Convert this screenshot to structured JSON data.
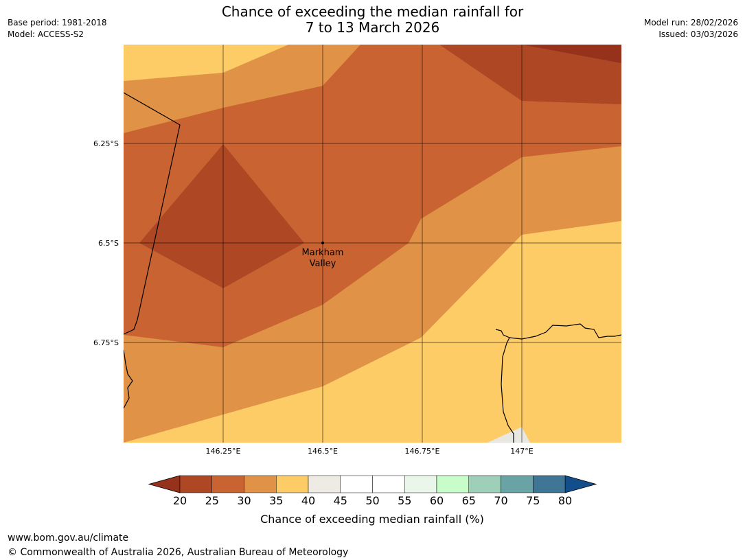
{
  "header": {
    "title_line1": "Chance of exceeding the median rainfall for",
    "title_line2": "7 to 13 March 2026",
    "base_period": "Base period: 1981-2018",
    "model": "Model: ACCESS-S2",
    "model_run": "Model run: 28/02/2026",
    "issued": "Issued: 03/03/2026"
  },
  "map": {
    "lat_labels": [
      "6.25°S",
      "6.5°S",
      "6.75°S"
    ],
    "lon_labels": [
      "146.25°E",
      "146.5°E",
      "146.75°E",
      "147°E"
    ],
    "place_name_line1": "Markham",
    "place_name_line2": "Valley",
    "band_colors": {
      "20-25": "#ae4724",
      "25-30": "#c96432",
      "30-35": "#e09246",
      "35-40": "#fdcc67",
      "below-20": "#96321c",
      "land-grey": "#e9e7e2"
    }
  },
  "colorbar": {
    "ticks": [
      "20",
      "25",
      "30",
      "35",
      "40",
      "45",
      "50",
      "55",
      "60",
      "65",
      "70",
      "75",
      "80"
    ],
    "label": "Chance of exceeding median rainfall (%)",
    "under_color": "#96321c",
    "over_color": "#134e8c",
    "colors": [
      "#ae4724",
      "#c96432",
      "#e09246",
      "#fdcc67",
      "#eeebe5",
      "#ffffff",
      "#ffffff",
      "#eaf6ea",
      "#c8fcc8",
      "#9ecfb8",
      "#6aa3a5",
      "#3f7595"
    ]
  },
  "footer": {
    "url": "www.bom.gov.au/climate",
    "copyright": "© Commonwealth of Australia 2026, Australian Bureau of Meteorology"
  }
}
